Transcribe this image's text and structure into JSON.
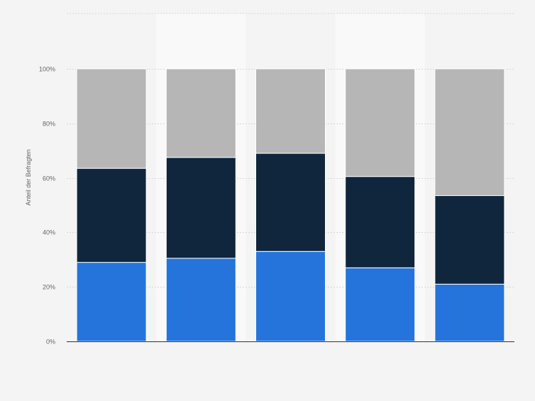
{
  "chart_data": {
    "type": "bar",
    "stacked": true,
    "percent_stacked": true,
    "categories": [
      "",
      "",
      "",
      "",
      ""
    ],
    "series": [
      {
        "values": [
          29,
          30.5,
          33,
          27,
          21
        ],
        "color": "#2574dc"
      },
      {
        "values": [
          34.5,
          37,
          36,
          33.5,
          32.5
        ],
        "color": "#0f263c"
      },
      {
        "values": [
          36.5,
          32.5,
          31,
          39.5,
          46.5
        ],
        "color": "#b6b6b6"
      }
    ],
    "ylabel": "Anteil der Befragten",
    "ylim": [
      0,
      100
    ],
    "yticks": [
      0,
      20,
      40,
      60,
      80,
      100
    ],
    "ytick_labels": [
      "0%",
      "20%",
      "40%",
      "60%",
      "80%",
      "100%"
    ],
    "grid": true,
    "legend": "none"
  },
  "colors": {
    "background": "#f4f4f4",
    "band": "#f9f9f9",
    "grid": "#d6d6d6",
    "axis": "#333333",
    "tick_text": "#666666"
  }
}
